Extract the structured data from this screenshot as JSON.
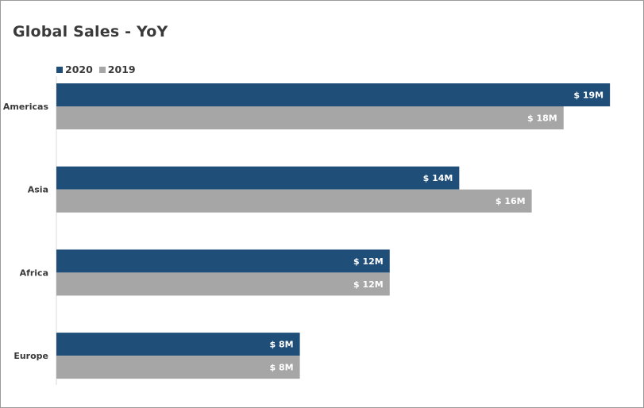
{
  "chart_data": {
    "type": "bar",
    "orientation": "horizontal",
    "title": "Global Sales - YoY",
    "categories": [
      "Americas",
      "Asia",
      "Africa",
      "Europe"
    ],
    "series": [
      {
        "name": "2020",
        "color": "#1f4e79",
        "values": [
          19.1,
          13.9,
          11.5,
          8.4
        ],
        "labels": [
          "$ 19M",
          "$ 14M",
          "$ 12M",
          "$ 8M"
        ]
      },
      {
        "name": "2019",
        "color": "#a6a6a6",
        "values": [
          17.5,
          16.4,
          11.5,
          8.4
        ],
        "labels": [
          "$ 18M",
          "$ 16M",
          "$ 12M",
          "$ 8M"
        ]
      }
    ],
    "unit": "M",
    "xlim": [
      0,
      20
    ],
    "grid": false,
    "legend": "top-left"
  }
}
